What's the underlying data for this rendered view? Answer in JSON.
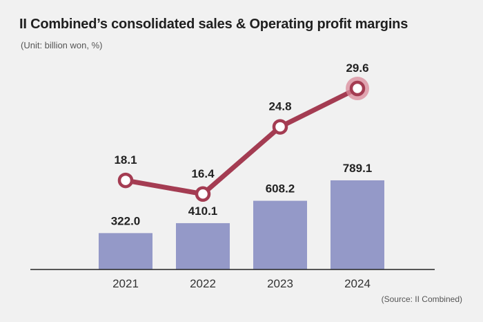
{
  "title": "II Combined’s consolidated sales & Operating profit margins",
  "unit": "(Unit: billion won, %)",
  "source": "(Source: II Combined)",
  "colors": {
    "bar": "#9499c8",
    "line": "#a43c52",
    "marker_fill": "#ffffff",
    "highlight_halo": "#d98a9a",
    "axis": "#222222"
  },
  "chart_data": {
    "type": "bar",
    "categories": [
      "2021",
      "2022",
      "2023",
      "2024"
    ],
    "series": [
      {
        "name": "Consolidated sales",
        "type": "bar",
        "unit": "billion won",
        "values": [
          322.0,
          410.1,
          608.2,
          789.1
        ],
        "labels": [
          "322.0",
          "410.1",
          "608.2",
          "789.1"
        ]
      },
      {
        "name": "Operating profit margin",
        "type": "line",
        "unit": "%",
        "values": [
          18.1,
          16.4,
          24.8,
          29.6
        ],
        "labels": [
          "18.1",
          "16.4",
          "24.8",
          "29.6"
        ]
      }
    ],
    "title": "II Combined’s consolidated sales & Operating profit margins",
    "xlabel": "",
    "ylabel": "",
    "grid": false,
    "highlight_index": 3
  }
}
